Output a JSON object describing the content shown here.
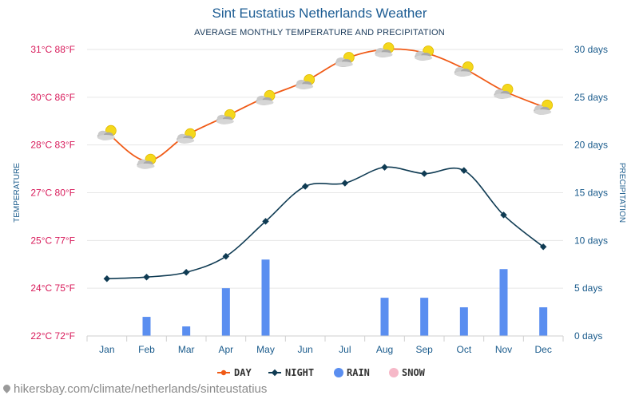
{
  "header": {
    "title": "Sint Eustatius Netherlands Weather",
    "subtitle": "AVERAGE MONTHLY TEMPERATURE AND PRECIPITATION"
  },
  "footer": {
    "url": "hikersbay.com/climate/netherlands/sinteustatius"
  },
  "colors": {
    "day": "#f05a16",
    "night": "#0f3b53",
    "rain": "#5a8ef0",
    "snow": "#f6b8c8",
    "left_axis": "#d81a5a",
    "right_axis": "#1a5b8c",
    "grid": "#e6e6e6"
  },
  "chart_data": {
    "type": "line",
    "title": "Sint Eustatius Netherlands Weather",
    "subtitle": "AVERAGE MONTHLY TEMPERATURE AND PRECIPITATION",
    "categories": [
      "Jan",
      "Feb",
      "Mar",
      "Apr",
      "May",
      "Jun",
      "Jul",
      "Aug",
      "Sep",
      "Oct",
      "Nov",
      "Dec"
    ],
    "left_axis": {
      "label": "TEMPERATURE",
      "tick_labels": [
        "22°C 72°F",
        "24°C 75°F",
        "25°C 77°F",
        "27°C 80°F",
        "28°C 83°F",
        "30°C 86°F",
        "31°C 88°F"
      ],
      "range": [
        22,
        31
      ]
    },
    "right_axis": {
      "label": "PRECIPITATION",
      "tick_labels": [
        "0 days",
        "5 days",
        "10 days",
        "15 days",
        "20 days",
        "25 days",
        "30 days"
      ],
      "range": [
        0,
        30
      ]
    },
    "series": [
      {
        "name": "DAY",
        "type": "line",
        "axis": "left",
        "icons": "partly-cloudy-icon",
        "values": [
          28.4,
          27.5,
          28.3,
          28.9,
          29.5,
          30.0,
          30.7,
          31.0,
          30.9,
          30.4,
          29.7,
          29.2
        ]
      },
      {
        "name": "NIGHT",
        "type": "line",
        "axis": "left",
        "values": [
          23.8,
          23.85,
          24.0,
          24.5,
          25.6,
          26.7,
          26.8,
          27.3,
          27.1,
          27.2,
          25.8,
          24.8
        ]
      },
      {
        "name": "RAIN",
        "type": "bar",
        "axis": "right",
        "values": [
          0,
          2,
          1,
          5,
          8,
          0,
          0,
          4,
          4,
          3,
          7,
          3
        ]
      },
      {
        "name": "SNOW",
        "type": "bar",
        "axis": "right",
        "values": [
          0,
          0,
          0,
          0,
          0,
          0,
          0,
          0,
          0,
          0,
          0,
          0
        ]
      }
    ],
    "legend": [
      "DAY",
      "NIGHT",
      "RAIN",
      "SNOW"
    ],
    "legend_position": "bottom-center",
    "grid": true
  }
}
